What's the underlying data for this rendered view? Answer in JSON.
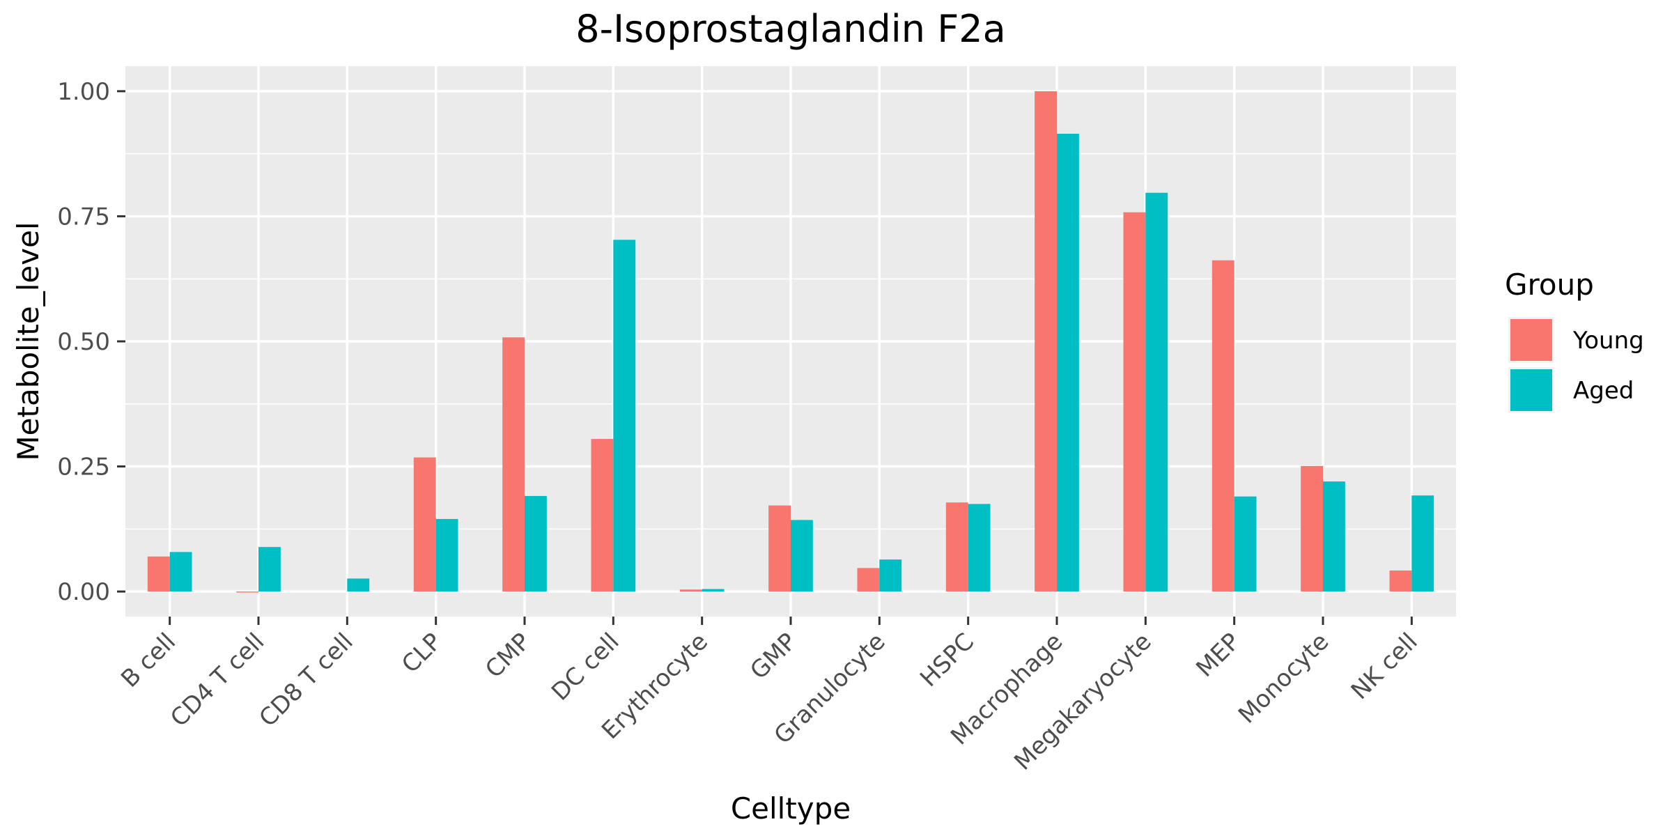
{
  "chart_data": {
    "type": "bar",
    "title": "8-Isoprostaglandin F2a",
    "xlabel": "Celltype",
    "ylabel": "Metabolite_level",
    "categories": [
      "B cell",
      "CD4 T cell",
      "CD8 T cell",
      "CLP",
      "CMP",
      "DC cell",
      "Erythrocyte",
      "GMP",
      "Granulocyte",
      "HSPC",
      "Macrophage",
      "Megakaryocyte",
      "MEP",
      "Monocyte",
      "NK cell"
    ],
    "series": [
      {
        "name": "Young",
        "color": "#F8766D",
        "values": [
          0.07,
          -0.002,
          0.0,
          0.268,
          0.508,
          0.305,
          0.004,
          0.172,
          0.047,
          0.178,
          1.0,
          0.758,
          0.662,
          0.251,
          0.042
        ]
      },
      {
        "name": "Aged",
        "color": "#00BFC4",
        "values": [
          0.079,
          0.089,
          0.026,
          0.145,
          0.191,
          0.703,
          0.005,
          0.143,
          0.064,
          0.175,
          0.915,
          0.797,
          0.19,
          0.22,
          0.192
        ]
      }
    ],
    "ylim": [
      -0.05,
      1.05
    ],
    "yticks": [
      0.0,
      0.25,
      0.5,
      0.75,
      1.0
    ],
    "ytick_labels": [
      "0.00",
      "0.25",
      "0.50",
      "0.75",
      "1.00"
    ],
    "legend": {
      "title": "Group",
      "position": "right"
    },
    "grid": true,
    "panel_background": "#EBEBEB"
  }
}
